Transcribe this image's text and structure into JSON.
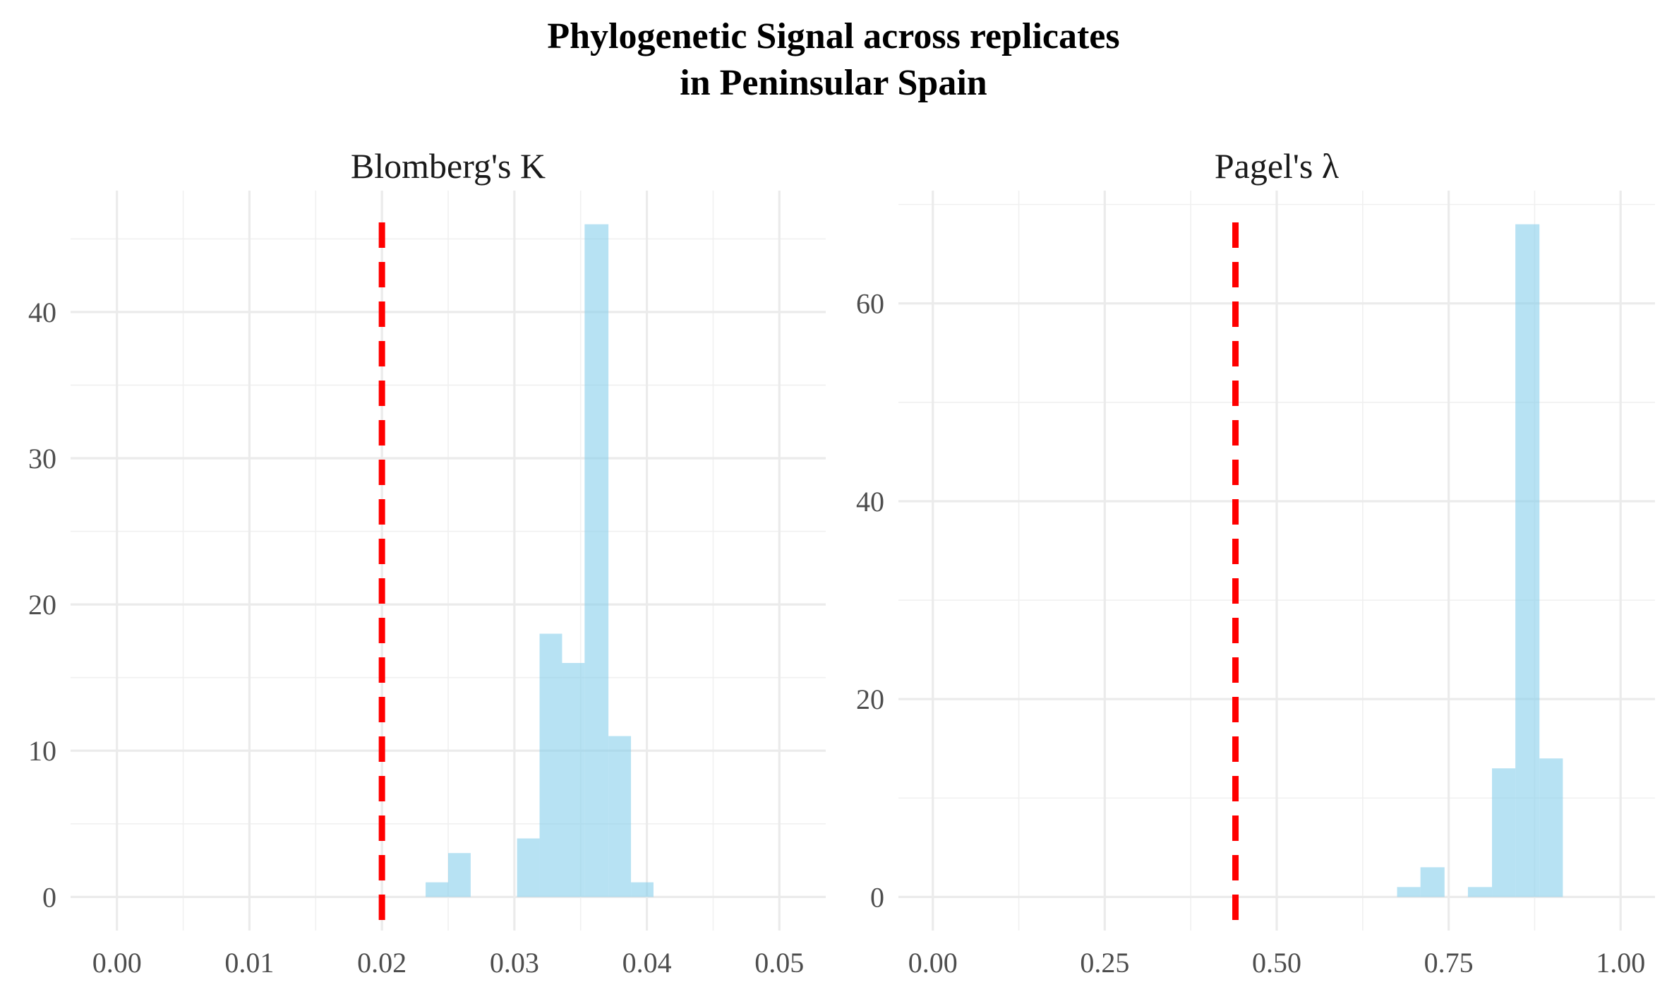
{
  "title_line1": "Phylogenetic Signal across replicates",
  "title_line2": "in Peninsular Spain",
  "chart_data": [
    {
      "type": "bar",
      "subtype": "histogram",
      "panel_title": "Blomberg's K",
      "xlabel": "",
      "ylabel": "",
      "xlim": [
        -0.0035,
        0.0535
      ],
      "ylim": [
        -2.3,
        48.3
      ],
      "x_ticks": [
        {
          "value": 0.0,
          "label": "0.00"
        },
        {
          "value": 0.01,
          "label": "0.01"
        },
        {
          "value": 0.02,
          "label": "0.02"
        },
        {
          "value": 0.03,
          "label": "0.03"
        },
        {
          "value": 0.04,
          "label": "0.04"
        },
        {
          "value": 0.05,
          "label": "0.05"
        }
      ],
      "y_ticks": [
        {
          "value": 0,
          "label": "0"
        },
        {
          "value": 10,
          "label": "10"
        },
        {
          "value": 20,
          "label": "20"
        },
        {
          "value": 30,
          "label": "30"
        },
        {
          "value": 40,
          "label": "40"
        }
      ],
      "bins": [
        {
          "x0": 0.0233,
          "x1": 0.025,
          "count": 1
        },
        {
          "x0": 0.025,
          "x1": 0.0267,
          "count": 3
        },
        {
          "x0": 0.0302,
          "x1": 0.0319,
          "count": 4
        },
        {
          "x0": 0.0319,
          "x1": 0.0336,
          "count": 18
        },
        {
          "x0": 0.0336,
          "x1": 0.0353,
          "count": 16
        },
        {
          "x0": 0.0353,
          "x1": 0.0371,
          "count": 46
        },
        {
          "x0": 0.0371,
          "x1": 0.0388,
          "count": 11
        },
        {
          "x0": 0.0388,
          "x1": 0.0405,
          "count": 1
        }
      ],
      "reference_line": {
        "x": 0.02,
        "color": "#ff0000",
        "style": "dashed"
      },
      "bar_color": "#87ceeb",
      "grid": true
    },
    {
      "type": "bar",
      "subtype": "histogram",
      "panel_title": "Pagel's λ",
      "xlabel": "",
      "ylabel": "",
      "xlim": [
        -0.05,
        1.05
      ],
      "ylim": [
        -3.4,
        71.4
      ],
      "x_ticks": [
        {
          "value": 0.0,
          "label": "0.00"
        },
        {
          "value": 0.25,
          "label": "0.25"
        },
        {
          "value": 0.5,
          "label": "0.50"
        },
        {
          "value": 0.75,
          "label": "0.75"
        },
        {
          "value": 1.0,
          "label": "1.00"
        }
      ],
      "y_ticks": [
        {
          "value": 0,
          "label": "0"
        },
        {
          "value": 20,
          "label": "20"
        },
        {
          "value": 40,
          "label": "40"
        },
        {
          "value": 60,
          "label": "60"
        }
      ],
      "bins": [
        {
          "x0": 0.675,
          "x1": 0.709,
          "count": 1
        },
        {
          "x0": 0.709,
          "x1": 0.744,
          "count": 3
        },
        {
          "x0": 0.778,
          "x1": 0.813,
          "count": 1
        },
        {
          "x0": 0.813,
          "x1": 0.847,
          "count": 13
        },
        {
          "x0": 0.847,
          "x1": 0.882,
          "count": 68
        },
        {
          "x0": 0.882,
          "x1": 0.916,
          "count": 14
        }
      ],
      "reference_line": {
        "x": 0.44,
        "color": "#ff0000",
        "style": "dashed"
      },
      "bar_color": "#87ceeb",
      "grid": true
    }
  ]
}
